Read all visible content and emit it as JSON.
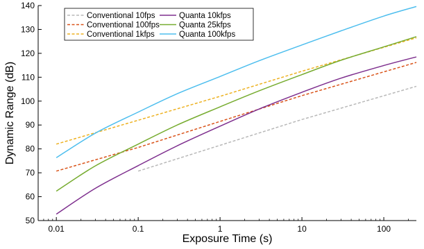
{
  "chart_data": {
    "type": "line",
    "xlabel": "Exposure Time (s)",
    "ylabel": "Dynamic Range (dB)",
    "xscale": "log",
    "xlim": [
      0.006,
      250
    ],
    "ylim": [
      50,
      140
    ],
    "grid": false,
    "legend_position": "top-left",
    "x_ticks": [
      {
        "value": 0.01,
        "label": "0.01"
      },
      {
        "value": 0.1,
        "label": "0.1"
      },
      {
        "value": 1,
        "label": "1"
      },
      {
        "value": 10,
        "label": "10"
      },
      {
        "value": 100,
        "label": "100"
      }
    ],
    "y_ticks": [
      {
        "value": 50,
        "label": "50"
      },
      {
        "value": 60,
        "label": "60"
      },
      {
        "value": 70,
        "label": "70"
      },
      {
        "value": 80,
        "label": "80"
      },
      {
        "value": 90,
        "label": "90"
      },
      {
        "value": 100,
        "label": "100"
      },
      {
        "value": 110,
        "label": "110"
      },
      {
        "value": 120,
        "label": "120"
      },
      {
        "value": 130,
        "label": "130"
      },
      {
        "value": 140,
        "label": "140"
      }
    ],
    "series": [
      {
        "name": "Conventional 10fps",
        "color": "#b8b8b8",
        "dash": true,
        "x": [
          0.1,
          1,
          10,
          250
        ],
        "y": [
          70.7,
          81.5,
          92.3,
          106.2
        ]
      },
      {
        "name": "Conventional 100fps",
        "color": "#d95319",
        "dash": true,
        "x": [
          0.01,
          0.1,
          1,
          10,
          250
        ],
        "y": [
          70.7,
          80.6,
          91.5,
          102.3,
          116.2
        ]
      },
      {
        "name": "Conventional 1kfps",
        "color": "#edb120",
        "dash": true,
        "x": [
          0.01,
          0.1,
          1,
          10,
          250
        ],
        "y": [
          82.0,
          92.0,
          102.0,
          112.5,
          126.5
        ]
      },
      {
        "name": "Quanta 10kfps",
        "color": "#7e2f8e",
        "dash": false,
        "x": [
          0.01,
          0.03,
          0.1,
          0.3,
          1,
          3,
          10,
          30,
          100,
          250
        ],
        "y": [
          52.7,
          63.5,
          73.0,
          81.3,
          89.5,
          96.7,
          103.7,
          109.6,
          114.9,
          118.5
        ]
      },
      {
        "name": "Quanta 25kfps",
        "color": "#77ac30",
        "dash": false,
        "x": [
          0.01,
          0.03,
          0.1,
          0.3,
          1,
          3,
          10,
          30,
          100,
          250
        ],
        "y": [
          62.3,
          72.9,
          82.0,
          90.0,
          97.6,
          104.3,
          111.1,
          117.1,
          122.7,
          127.0
        ]
      },
      {
        "name": "Quanta 100kfps",
        "color": "#4dbeee",
        "dash": false,
        "x": [
          0.01,
          0.03,
          0.1,
          0.3,
          1,
          3,
          10,
          30,
          100,
          250
        ],
        "y": [
          76.3,
          86.6,
          95.4,
          103.1,
          110.3,
          116.9,
          123.5,
          129.4,
          135.6,
          139.6
        ]
      }
    ]
  }
}
